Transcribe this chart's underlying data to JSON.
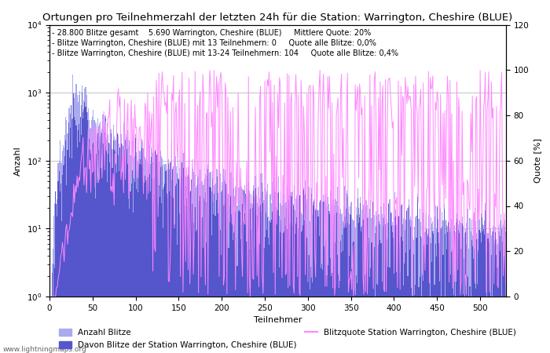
{
  "title": "Ortungen pro Teilnehmerzahl der letzten 24h für die Station: Warrington, Cheshire (BLUE)",
  "annotation_lines": [
    "- 28.800 Blitze gesamt    5.690 Warrington, Cheshire (BLUE)     Mittlere Quote: 20%",
    "- Blitze Warrington, Cheshire (BLUE) mit 13 Teilnehmern: 0     Quote alle Blitze: 0,0%",
    "- Blitze Warrington, Cheshire (BLUE) mit 13-24 Teilnehmern: 104     Quote alle Blitze: 0,4%"
  ],
  "xlabel": "Teilnehmer",
  "ylabel_left": "Anzahl",
  "ylabel_right": "Quote [%]",
  "xlim": [
    0,
    530
  ],
  "ylim_log": [
    1,
    10000
  ],
  "ylim_right": [
    0,
    120
  ],
  "yticks_right": [
    0,
    20,
    40,
    60,
    80,
    100,
    120
  ],
  "xticks": [
    0,
    50,
    100,
    150,
    200,
    250,
    300,
    350,
    400,
    450,
    500
  ],
  "watermark": "www.lightningmaps.org",
  "legend_label_total": "Anzahl Blitze",
  "legend_label_station": "Davon Blitze der Station Warrington, Cheshire (BLUE)",
  "legend_label_quote": "Blitzquote Station Warrington, Cheshire (BLUE)",
  "bar_color_light": "#aaaaee",
  "bar_color_dark": "#5555cc",
  "line_color": "#ff88ff",
  "grid_color": "#aaaaaa",
  "title_fontsize": 9.5,
  "annotation_fontsize": 7,
  "axis_label_fontsize": 8,
  "tick_fontsize": 7.5,
  "legend_fontsize": 7.5
}
